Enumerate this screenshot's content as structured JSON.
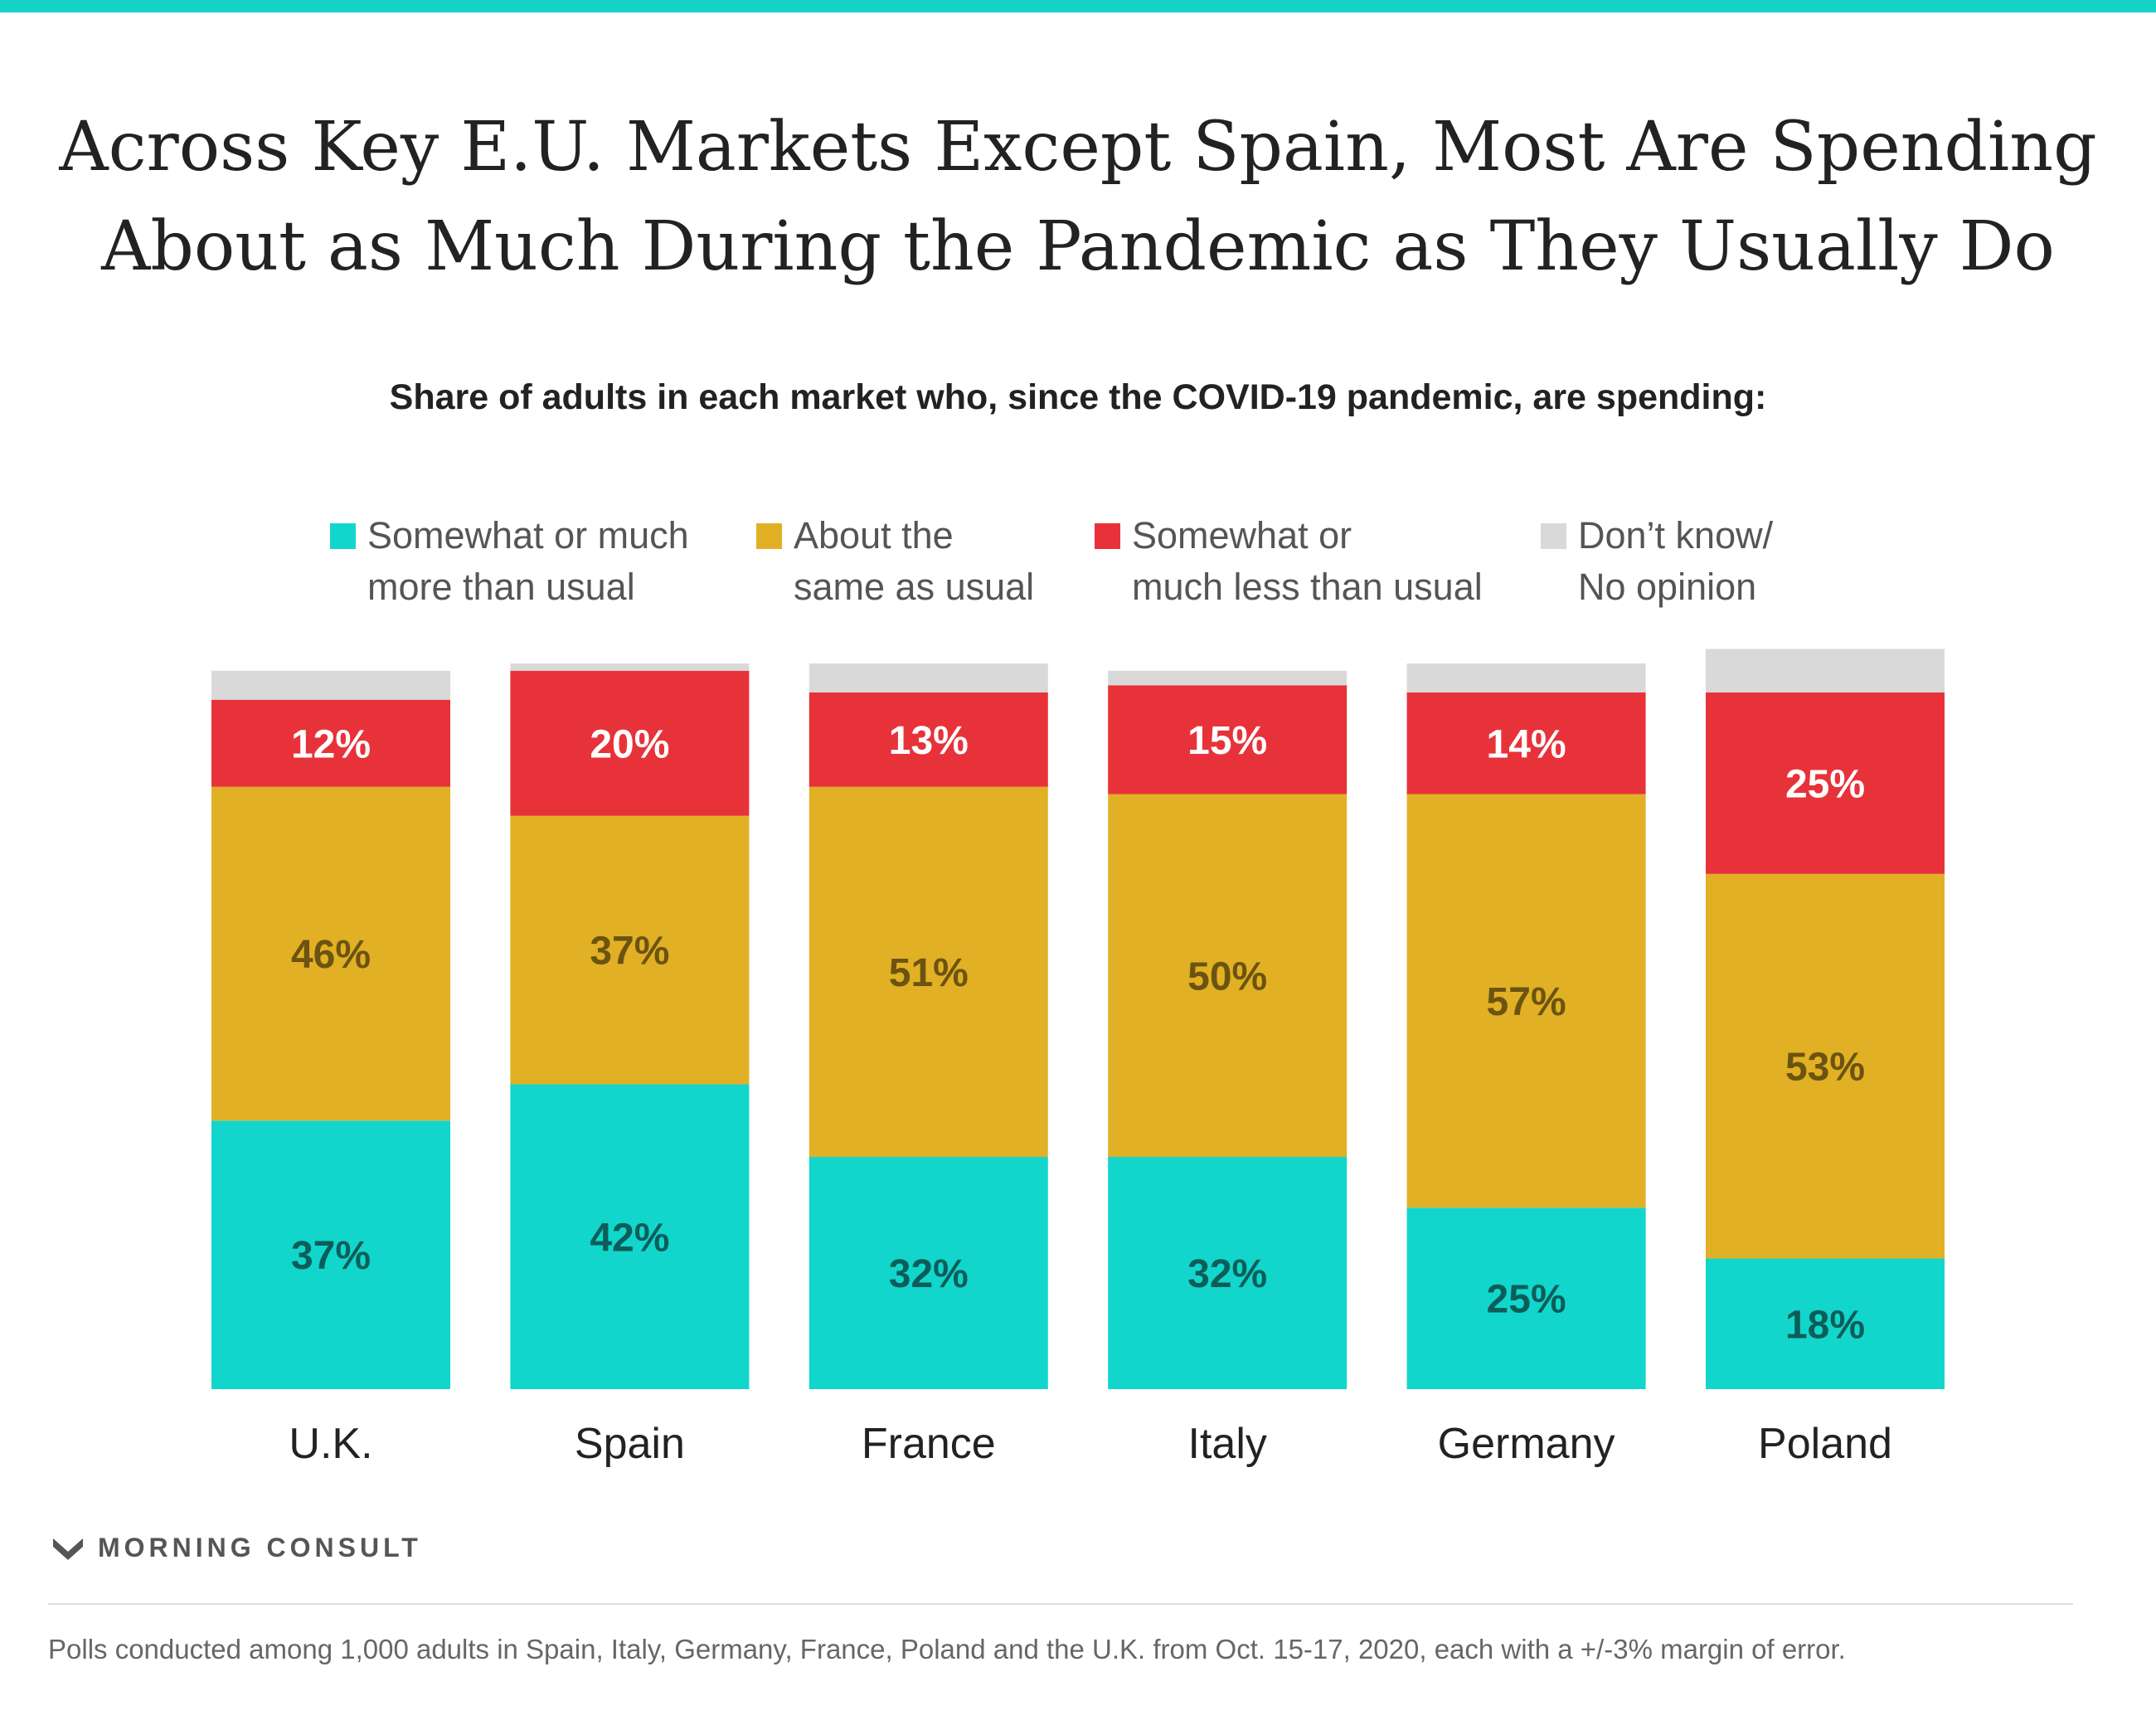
{
  "title": "Across Key E.U. Markets Except Spain, Most Are Spending About as Much During the Pandemic as They Usually Do",
  "subtitle": "Share of adults in each market who, since the COVID-19 pandemic, are spending:",
  "colors": {
    "top_bar": "#16d3c9",
    "more": "#12d6cb",
    "same": "#e1b024",
    "less": "#e8323a",
    "dont_know": "#d9d9d9",
    "label_more": "#0c5d59",
    "label_same": "#6b5310",
    "label_less": "#ffffff"
  },
  "legend": [
    {
      "key": "more",
      "label": "Somewhat or much\nmore than usual"
    },
    {
      "key": "same",
      "label": "About the\nsame as usual"
    },
    {
      "key": "less",
      "label": "Somewhat or\nmuch less than usual"
    },
    {
      "key": "dont_know",
      "label": "Don’t know/\nNo opinion"
    }
  ],
  "chart_data": {
    "type": "bar",
    "stacked": true,
    "categories": [
      "U.K.",
      "Spain",
      "France",
      "Italy",
      "Germany",
      "Poland"
    ],
    "series": [
      {
        "name": "Somewhat or much more than usual",
        "key": "more",
        "values": [
          37,
          42,
          32,
          32,
          25,
          18
        ]
      },
      {
        "name": "About the same as usual",
        "key": "same",
        "values": [
          46,
          37,
          51,
          50,
          57,
          53
        ]
      },
      {
        "name": "Somewhat or much less than usual",
        "key": "less",
        "values": [
          12,
          20,
          13,
          15,
          14,
          25
        ]
      },
      {
        "name": "Don’t know/No opinion",
        "key": "dont_know",
        "values": [
          4,
          1,
          4,
          2,
          4,
          6
        ]
      }
    ],
    "labeled_series": [
      "more",
      "same",
      "less"
    ],
    "value_suffix": "%",
    "ylim": [
      0,
      100
    ],
    "grid": false,
    "legend_position": "top"
  },
  "brand": {
    "name": "MORNING CONSULT"
  },
  "footnote": "Polls conducted among 1,000 adults in Spain, Italy, Germany, France, Poland and the U.K. from Oct. 15-17, 2020, each with a +/-3% margin of error."
}
